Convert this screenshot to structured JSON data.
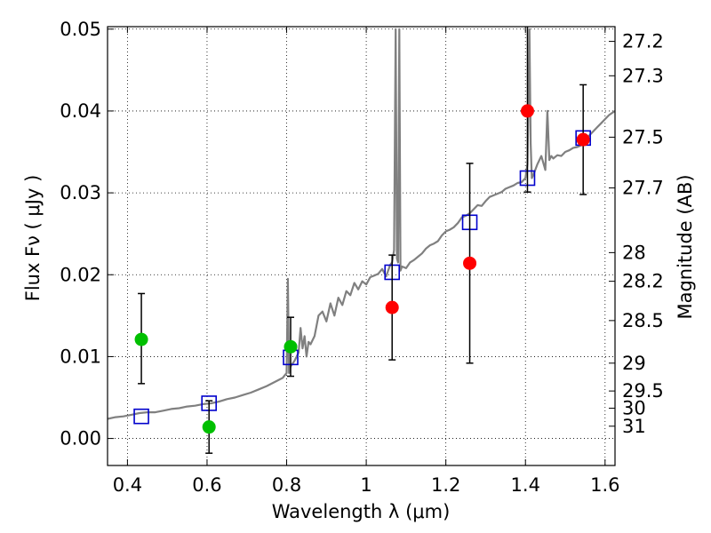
{
  "chart_data": {
    "type": "scatter",
    "xlabel": "Wavelength  λ (μm)",
    "ylabel": "Flux  Fν  ( μJy )",
    "y2label": "Magnitude (AB)",
    "xlim": [
      0.35,
      1.625
    ],
    "ylim": [
      -0.0033,
      0.0503
    ],
    "grid": true,
    "x_ticks": [
      0.4,
      0.6,
      0.8,
      1.0,
      1.2,
      1.4,
      1.6
    ],
    "x_tick_labels": [
      "0.4",
      "0.6",
      "0.8",
      "1",
      "1.2",
      "1.4",
      "1.6"
    ],
    "y_ticks": [
      0.0,
      0.01,
      0.02,
      0.03,
      0.04,
      0.05
    ],
    "y_tick_labels": [
      "0.00",
      "0.01",
      "0.02",
      "0.03",
      "0.04",
      "0.05"
    ],
    "magnitude_ticks": [
      {
        "label": "27.2",
        "flux": 0.0485
      },
      {
        "label": "27.3",
        "flux": 0.0443
      },
      {
        "label": "27.5",
        "flux": 0.0368
      },
      {
        "label": "27.7",
        "flux": 0.0306
      },
      {
        "label": "28",
        "flux": 0.0227
      },
      {
        "label": "28.2",
        "flux": 0.0192
      },
      {
        "label": "28.5",
        "flux": 0.0144
      },
      {
        "label": "29",
        "flux": 0.0092
      },
      {
        "label": "29.5",
        "flux": 0.0058
      },
      {
        "label": "30",
        "flux": 0.0037
      },
      {
        "label": "31",
        "flux": 0.0015
      }
    ],
    "series": [
      {
        "color": "#808080",
        "marker": "line",
        "x": [
          0.35,
          0.37,
          0.39,
          0.41,
          0.43,
          0.45,
          0.47,
          0.49,
          0.51,
          0.53,
          0.55,
          0.57,
          0.59,
          0.61,
          0.63,
          0.65,
          0.67,
          0.69,
          0.71,
          0.73,
          0.75,
          0.77,
          0.79,
          0.795,
          0.8,
          0.803,
          0.806,
          0.81,
          0.82,
          0.83,
          0.835,
          0.84,
          0.845,
          0.85,
          0.855,
          0.86,
          0.87,
          0.88,
          0.89,
          0.9,
          0.91,
          0.92,
          0.93,
          0.94,
          0.95,
          0.96,
          0.97,
          0.98,
          0.99,
          1.0,
          1.01,
          1.02,
          1.03,
          1.04,
          1.05,
          1.06,
          1.065,
          1.07,
          1.074,
          1.077,
          1.08,
          1.083,
          1.086,
          1.09,
          1.1,
          1.11,
          1.12,
          1.13,
          1.14,
          1.15,
          1.16,
          1.17,
          1.18,
          1.19,
          1.2,
          1.21,
          1.22,
          1.23,
          1.24,
          1.25,
          1.26,
          1.27,
          1.28,
          1.29,
          1.3,
          1.31,
          1.32,
          1.33,
          1.34,
          1.35,
          1.36,
          1.37,
          1.38,
          1.39,
          1.4,
          1.405,
          1.41,
          1.413,
          1.416,
          1.42,
          1.43,
          1.44,
          1.45,
          1.455,
          1.46,
          1.465,
          1.47,
          1.48,
          1.49,
          1.5,
          1.51,
          1.52,
          1.53,
          1.54,
          1.55,
          1.56,
          1.57,
          1.58,
          1.59,
          1.6,
          1.61,
          1.625
        ],
        "y": [
          0.0024,
          0.0026,
          0.0027,
          0.0029,
          0.0031,
          0.0032,
          0.0032,
          0.0034,
          0.0036,
          0.0037,
          0.0039,
          0.004,
          0.0042,
          0.0043,
          0.0045,
          0.0048,
          0.005,
          0.0053,
          0.0056,
          0.006,
          0.0064,
          0.0069,
          0.0074,
          0.0077,
          0.008,
          0.0195,
          0.008,
          0.0088,
          0.0095,
          0.0105,
          0.0135,
          0.011,
          0.0125,
          0.01,
          0.0118,
          0.0115,
          0.0125,
          0.015,
          0.0155,
          0.0143,
          0.0165,
          0.015,
          0.0172,
          0.0163,
          0.018,
          0.0175,
          0.019,
          0.0182,
          0.0192,
          0.0188,
          0.0197,
          0.0199,
          0.0201,
          0.0207,
          0.0198,
          0.0212,
          0.0215,
          0.023,
          0.05,
          0.022,
          0.0215,
          0.05,
          0.0205,
          0.021,
          0.0208,
          0.0215,
          0.0218,
          0.0222,
          0.0226,
          0.0232,
          0.0236,
          0.0238,
          0.0241,
          0.0248,
          0.0253,
          0.0255,
          0.0258,
          0.0263,
          0.027,
          0.0272,
          0.0275,
          0.028,
          0.0285,
          0.0284,
          0.029,
          0.0295,
          0.0297,
          0.0299,
          0.0301,
          0.0305,
          0.0307,
          0.0309,
          0.0312,
          0.0313,
          0.0318,
          0.0335,
          0.05,
          0.036,
          0.0318,
          0.0322,
          0.0335,
          0.0345,
          0.0328,
          0.04,
          0.034,
          0.0345,
          0.0342,
          0.0346,
          0.0345,
          0.035,
          0.0352,
          0.0355,
          0.0356,
          0.0358,
          0.0362,
          0.037,
          0.0375,
          0.038,
          0.0385,
          0.039,
          0.0395,
          0.04
        ]
      },
      {
        "color": "#0000cc",
        "marker": "open-square",
        "x": [
          0.435,
          0.605,
          0.81,
          1.065,
          1.26,
          1.405,
          1.545
        ],
        "y": [
          0.0027,
          0.0043,
          0.0099,
          0.0203,
          0.0264,
          0.0318,
          0.0367
        ]
      },
      {
        "color": "#00bf00",
        "marker": "filled-circle",
        "x": [
          0.435,
          0.605,
          0.81
        ],
        "y": [
          0.0121,
          0.0014,
          0.0112
        ],
        "err_low": [
          0.0054,
          0.0032,
          0.0036
        ],
        "err_high": [
          0.0056,
          0.0032,
          0.0036
        ]
      },
      {
        "color": "#ff0000",
        "marker": "filled-circle",
        "x": [
          1.065,
          1.26,
          1.405,
          1.545
        ],
        "y": [
          0.016,
          0.0214,
          0.04,
          0.0365
        ],
        "err_low": [
          0.0064,
          0.0122,
          0.0099,
          0.0067
        ],
        "err_high": [
          0.0064,
          0.0122,
          0.0105,
          0.0067
        ]
      }
    ]
  }
}
